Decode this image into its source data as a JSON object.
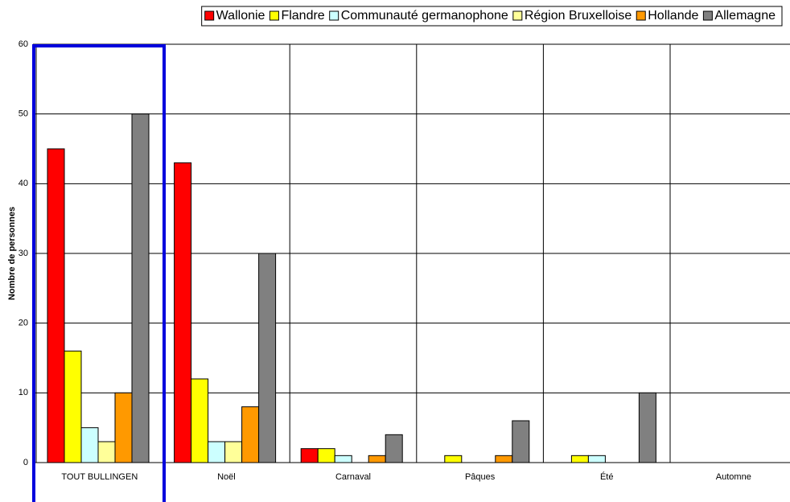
{
  "chart_data": {
    "type": "bar",
    "y_label": "Nombre de personnes",
    "categories": [
      "TOUT BULLINGEN",
      "Noël",
      "Carnaval",
      "Pâques",
      "Été",
      "Automne"
    ],
    "series": [
      {
        "name": "Wallonie",
        "color": "#ff0000",
        "values": [
          45,
          43,
          2,
          0,
          0,
          0
        ]
      },
      {
        "name": "Flandre",
        "color": "#ffff00",
        "values": [
          16,
          12,
          2,
          1,
          1,
          0
        ]
      },
      {
        "name": "Communauté germanophone",
        "color": "#ccffff",
        "values": [
          5,
          3,
          1,
          0,
          1,
          0
        ]
      },
      {
        "name": "Région Bruxelloise",
        "color": "#ffff99",
        "values": [
          3,
          3,
          0,
          0,
          0,
          0
        ]
      },
      {
        "name": "Hollande",
        "color": "#ff9900",
        "values": [
          10,
          8,
          1,
          1,
          0,
          0
        ]
      },
      {
        "name": "Allemagne",
        "color": "#808080",
        "values": [
          50,
          30,
          4,
          6,
          10,
          0
        ]
      }
    ],
    "ylim": [
      0,
      60
    ],
    "yticks": [
      0,
      10,
      20,
      30,
      40,
      50,
      60
    ],
    "grid": true,
    "legend": "top"
  }
}
